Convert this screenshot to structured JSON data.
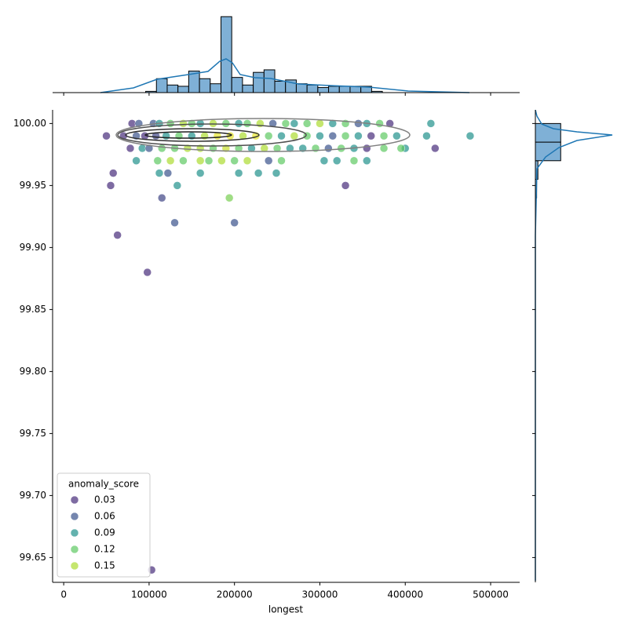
{
  "chart_data": {
    "type": "scatter",
    "x_label": "longest",
    "xlim": [
      -13000,
      534000
    ],
    "xticks": [
      0,
      100000,
      200000,
      300000,
      400000,
      500000
    ],
    "ylim": [
      99.63,
      100.011
    ],
    "yticks": [
      {
        "value": 99.65,
        "label": "99.65"
      },
      {
        "value": 99.7,
        "label": "99.70"
      },
      {
        "value": 99.75,
        "label": "99.75"
      },
      {
        "value": 99.8,
        "label": "99.80"
      },
      {
        "value": 99.85,
        "label": "99.85"
      },
      {
        "value": 99.9,
        "label": "99.90"
      },
      {
        "value": 99.95,
        "label": "99.95"
      },
      {
        "value": 100.0,
        "label": "100.00"
      }
    ],
    "legend_title": "anomaly_score",
    "legend_position": "lower left",
    "legend": [
      {
        "value": 0.03,
        "label": "0.03",
        "color": "#472c7a"
      },
      {
        "value": 0.06,
        "label": "0.06",
        "color": "#3b528b"
      },
      {
        "value": 0.09,
        "label": "0.09",
        "color": "#21918c"
      },
      {
        "value": 0.12,
        "label": "0.12",
        "color": "#5ec962"
      },
      {
        "value": 0.15,
        "label": "0.15",
        "color": "#addc30"
      }
    ],
    "x": [
      50000,
      58000,
      55000,
      63000,
      98000,
      103000,
      115000,
      130000,
      200000,
      133000,
      194000,
      330000,
      112000,
      122000,
      160000,
      205000,
      228000,
      249000,
      430000,
      476000,
      435000,
      425000,
      400000,
      395000,
      80000,
      88000,
      105000,
      112000,
      125000,
      140000,
      150000,
      160000,
      175000,
      190000,
      205000,
      215000,
      230000,
      245000,
      260000,
      270000,
      285000,
      300000,
      315000,
      330000,
      345000,
      355000,
      370000,
      382000,
      70000,
      85000,
      95000,
      108000,
      120000,
      135000,
      150000,
      165000,
      180000,
      195000,
      210000,
      225000,
      240000,
      255000,
      270000,
      285000,
      300000,
      315000,
      330000,
      345000,
      360000,
      375000,
      390000,
      78000,
      92000,
      100000,
      115000,
      130000,
      145000,
      160000,
      175000,
      190000,
      205000,
      220000,
      235000,
      250000,
      265000,
      280000,
      295000,
      310000,
      325000,
      340000,
      355000,
      375000,
      85000,
      110000,
      125000,
      140000,
      160000,
      170000,
      185000,
      200000,
      215000,
      240000,
      255000,
      305000,
      320000,
      340000,
      355000
    ],
    "y": [
      99.99,
      99.96,
      99.95,
      99.91,
      99.88,
      99.64,
      99.94,
      99.92,
      99.92,
      99.95,
      99.94,
      99.95,
      99.96,
      99.96,
      99.96,
      99.96,
      99.96,
      99.96,
      100.0,
      99.99,
      99.98,
      99.99,
      99.98,
      99.98,
      100.0,
      100.0,
      100.0,
      100.0,
      100.0,
      100.0,
      100.0,
      100.0,
      100.0,
      100.0,
      100.0,
      100.0,
      100.0,
      100.0,
      100.0,
      100.0,
      100.0,
      100.0,
      100.0,
      100.0,
      100.0,
      100.0,
      100.0,
      100.0,
      99.99,
      99.99,
      99.99,
      99.99,
      99.99,
      99.99,
      99.99,
      99.99,
      99.99,
      99.99,
      99.99,
      99.99,
      99.99,
      99.99,
      99.99,
      99.99,
      99.99,
      99.99,
      99.99,
      99.99,
      99.99,
      99.99,
      99.99,
      99.98,
      99.98,
      99.98,
      99.98,
      99.98,
      99.98,
      99.98,
      99.98,
      99.98,
      99.98,
      99.98,
      99.98,
      99.98,
      99.98,
      99.98,
      99.98,
      99.98,
      99.98,
      99.98,
      99.98,
      99.98,
      99.97,
      99.97,
      99.97,
      99.97,
      99.97,
      99.97,
      99.97,
      99.97,
      99.97,
      99.97,
      99.97,
      99.97,
      99.97,
      99.97,
      99.97
    ],
    "hue": [
      0.03,
      0.03,
      0.03,
      0.03,
      0.03,
      0.03,
      0.05,
      0.06,
      0.06,
      0.09,
      0.13,
      0.03,
      0.09,
      0.06,
      0.09,
      0.09,
      0.09,
      0.09,
      0.09,
      0.09,
      0.03,
      0.09,
      0.09,
      0.12,
      0.03,
      0.06,
      0.06,
      0.09,
      0.12,
      0.15,
      0.12,
      0.09,
      0.15,
      0.12,
      0.09,
      0.12,
      0.15,
      0.06,
      0.12,
      0.09,
      0.12,
      0.15,
      0.09,
      0.12,
      0.06,
      0.09,
      0.12,
      0.03,
      0.03,
      0.06,
      0.03,
      0.05,
      0.09,
      0.12,
      0.09,
      0.15,
      0.17,
      0.17,
      0.15,
      0.17,
      0.12,
      0.09,
      0.15,
      0.12,
      0.09,
      0.06,
      0.12,
      0.09,
      0.03,
      0.12,
      0.09,
      0.03,
      0.09,
      0.06,
      0.12,
      0.12,
      0.15,
      0.15,
      0.12,
      0.16,
      0.12,
      0.09,
      0.15,
      0.12,
      0.09,
      0.09,
      0.12,
      0.06,
      0.12,
      0.09,
      0.03,
      0.12,
      0.09,
      0.12,
      0.15,
      0.12,
      0.15,
      0.12,
      0.15,
      0.12,
      0.15,
      0.06,
      0.12,
      0.09,
      0.09,
      0.12,
      0.09
    ],
    "top_hist": {
      "color": "#7fb0d6",
      "bins": [
        96000,
        108600,
        121200,
        133800,
        146400,
        159000,
        171600,
        184200,
        196800,
        209400,
        222000,
        234600,
        247200,
        259800,
        272400,
        285000,
        297600,
        310200,
        322800,
        335400,
        348000,
        360600,
        373200
      ],
      "counts": [
        1,
        11,
        6,
        5,
        17,
        11,
        7,
        60,
        12,
        6,
        16,
        18,
        9,
        10,
        7,
        6,
        4,
        5,
        5,
        5,
        5,
        1
      ],
      "ylim": [
        0,
        62
      ]
    },
    "right_hist": {
      "color": "#7fb0d6",
      "bins": [
        99.94,
        99.955,
        99.97,
        99.985,
        100.0
      ],
      "counts": [
        1,
        2,
        20,
        20
      ],
      "xlim": [
        0,
        62
      ]
    }
  }
}
